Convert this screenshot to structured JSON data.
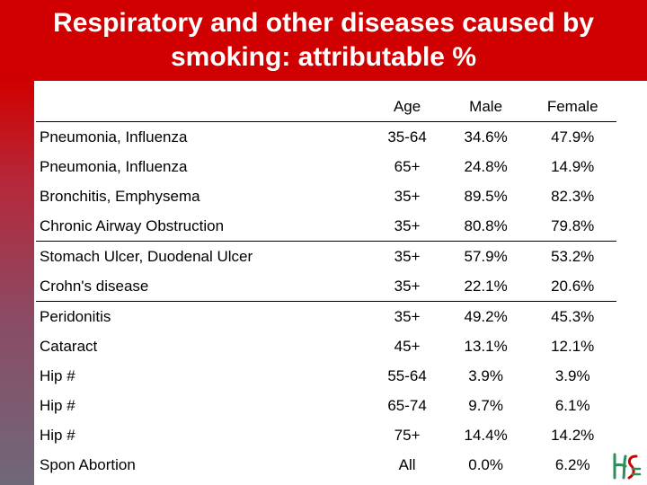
{
  "slide": {
    "title": "Respiratory and other diseases caused by smoking: attributable %"
  },
  "table": {
    "headers": {
      "name": "",
      "age": "Age",
      "male": "Male",
      "female": "Female"
    },
    "rows": [
      {
        "name": "Pneumonia, Influenza",
        "age": "35-64",
        "male": "34.6%",
        "female": "47.9%"
      },
      {
        "name": "Pneumonia, Influenza",
        "age": "65+",
        "male": "24.8%",
        "female": "14.9%"
      },
      {
        "name": "Bronchitis, Emphysema",
        "age": "35+",
        "male": "89.5%",
        "female": "82.3%"
      },
      {
        "name": "Chronic Airway Obstruction",
        "age": "35+",
        "male": "80.8%",
        "female": "79.8%"
      },
      {
        "name": "Stomach Ulcer, Duodenal Ulcer",
        "age": "35+",
        "male": "57.9%",
        "female": "53.2%"
      },
      {
        "name": "Crohn's disease",
        "age": "35+",
        "male": "22.1%",
        "female": "20.6%"
      },
      {
        "name": "Peridonitis",
        "age": "35+",
        "male": "49.2%",
        "female": "45.3%"
      },
      {
        "name": "Cataract",
        "age": "45+",
        "male": "13.1%",
        "female": "12.1%"
      },
      {
        "name": "Hip #",
        "age": "55-64",
        "male": "3.9%",
        "female": "3.9%"
      },
      {
        "name": "Hip #",
        "age": "65-74",
        "male": "9.7%",
        "female": "6.1%"
      },
      {
        "name": "Hip #",
        "age": "75+",
        "male": "14.4%",
        "female": "14.2%"
      },
      {
        "name": "Spon Abortion",
        "age": "All",
        "male": "0.0%",
        "female": "6.2%"
      }
    ]
  },
  "logo": {
    "icon": "hse-logo-icon",
    "text": "HSE",
    "colors": [
      "#d10000",
      "#2a8f5a"
    ]
  },
  "colors": {
    "title_bar": "#d10000",
    "title_text": "#ffffff"
  }
}
